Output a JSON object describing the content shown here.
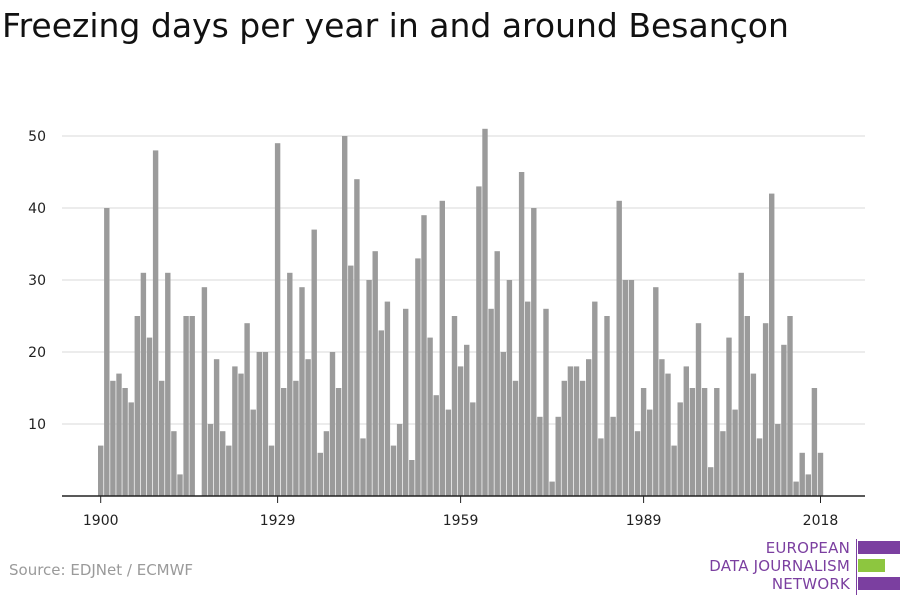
{
  "title": "Freezing days per year in and around Besançon",
  "source": "Source: EDJNet / ECMWF",
  "logo": {
    "lines": [
      "EUROPEAN",
      "DATA JOURNALISM",
      "NETWORK"
    ],
    "colors": {
      "text": "#7b3fa0",
      "purple": "#7b3fa0",
      "green": "#8dc63f"
    }
  },
  "chart_data": {
    "type": "bar",
    "title": "Freezing days per year in and around Besançon",
    "xlabel": "",
    "ylabel": "",
    "x": [
      1900,
      1901,
      1902,
      1903,
      1904,
      1905,
      1906,
      1907,
      1908,
      1909,
      1910,
      1911,
      1912,
      1913,
      1914,
      1915,
      1916,
      1917,
      1918,
      1919,
      1920,
      1921,
      1922,
      1923,
      1924,
      1925,
      1926,
      1927,
      1928,
      1929,
      1930,
      1931,
      1932,
      1933,
      1934,
      1935,
      1936,
      1937,
      1938,
      1939,
      1940,
      1941,
      1942,
      1943,
      1944,
      1945,
      1946,
      1947,
      1948,
      1949,
      1950,
      1951,
      1952,
      1953,
      1954,
      1955,
      1956,
      1957,
      1958,
      1959,
      1960,
      1961,
      1962,
      1963,
      1964,
      1965,
      1966,
      1967,
      1968,
      1969,
      1970,
      1971,
      1972,
      1973,
      1974,
      1975,
      1976,
      1977,
      1978,
      1979,
      1980,
      1981,
      1982,
      1983,
      1984,
      1985,
      1986,
      1987,
      1988,
      1989,
      1990,
      1991,
      1992,
      1993,
      1994,
      1995,
      1996,
      1997,
      1998,
      1999,
      2000,
      2001,
      2002,
      2003,
      2004,
      2005,
      2006,
      2007,
      2008,
      2009,
      2010,
      2011,
      2012,
      2013,
      2014,
      2015,
      2016,
      2017,
      2018
    ],
    "values": [
      7,
      40,
      16,
      17,
      15,
      13,
      25,
      31,
      22,
      48,
      16,
      31,
      9,
      3,
      25,
      25,
      0,
      29,
      10,
      19,
      9,
      7,
      18,
      17,
      24,
      12,
      20,
      20,
      7,
      49,
      15,
      31,
      16,
      29,
      19,
      37,
      6,
      9,
      20,
      15,
      50,
      32,
      44,
      8,
      30,
      34,
      23,
      27,
      7,
      10,
      26,
      5,
      33,
      39,
      22,
      14,
      41,
      12,
      25,
      18,
      21,
      13,
      43,
      51,
      26,
      34,
      20,
      30,
      16,
      45,
      27,
      40,
      11,
      26,
      2,
      11,
      16,
      18,
      18,
      16,
      19,
      27,
      8,
      25,
      11,
      41,
      30,
      30,
      9,
      15,
      12,
      29,
      19,
      17,
      7,
      13,
      18,
      15,
      24,
      15,
      4,
      15,
      9,
      22,
      12,
      31,
      25,
      17,
      8,
      24,
      42,
      10,
      21,
      25,
      2,
      6,
      3,
      15,
      6
    ],
    "ylim": [
      0,
      52
    ],
    "yticks": [
      10,
      20,
      30,
      40,
      50
    ],
    "xticks": [
      1900,
      1929,
      1959,
      1989,
      2018
    ],
    "grid": true,
    "colors": {
      "bar": "#9b9b9b",
      "grid": "#d9d9d9",
      "axis": "#222222"
    }
  }
}
